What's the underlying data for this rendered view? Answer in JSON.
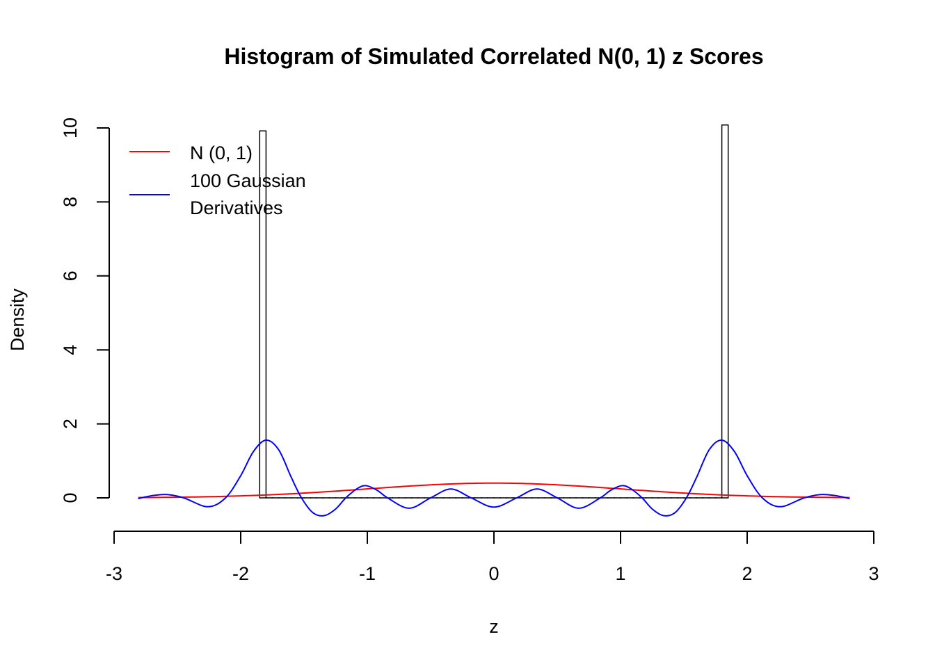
{
  "chart_data": {
    "type": "histogram",
    "title": "Histogram of Simulated Correlated N(0, 1) z Scores",
    "xlabel": "z",
    "ylabel": "Density",
    "xlim": [
      -3,
      3
    ],
    "ylim": [
      0,
      10
    ],
    "xticks": [
      -3,
      -2,
      -1,
      0,
      1,
      2,
      3
    ],
    "yticks": [
      0,
      2,
      4,
      6,
      8,
      10
    ],
    "grid": false,
    "histogram": {
      "break_start": -1.85,
      "bin_width": 0.05,
      "densities": [
        9.92,
        0,
        0,
        0,
        0,
        0,
        0,
        0,
        0,
        0,
        0,
        0,
        0,
        0,
        0,
        0,
        0,
        0,
        0,
        0,
        0,
        0,
        0,
        0,
        0,
        0,
        0,
        0,
        0,
        0,
        0,
        0,
        0,
        0,
        0,
        0,
        0,
        0,
        0,
        0,
        0,
        0,
        0,
        0,
        0,
        0,
        0,
        0,
        0,
        0,
        0,
        0,
        0,
        0,
        0,
        0,
        0,
        0,
        0,
        0,
        0,
        0,
        0,
        0,
        0,
        0,
        0,
        0,
        0,
        0,
        0,
        0,
        0,
        10.08
      ],
      "color": "#000000"
    },
    "series": [
      {
        "name": "N (0, 1)",
        "color": "#ff0000",
        "kind": "normal_density",
        "mean": 0,
        "sd": 1,
        "x_range": [
          -2.81,
          2.81
        ]
      },
      {
        "name": "100 Gaussian Derivatives",
        "color": "#0000ff",
        "points": [
          [
            -2.81,
            -0.02
          ],
          [
            -2.7,
            0.06
          ],
          [
            -2.58,
            0.09
          ],
          [
            -2.45,
            0.0
          ],
          [
            -2.26,
            -0.24
          ],
          [
            -2.12,
            0
          ],
          [
            -2.0,
            0.6
          ],
          [
            -1.9,
            1.25
          ],
          [
            -1.8,
            1.56
          ],
          [
            -1.7,
            1.3
          ],
          [
            -1.6,
            0.55
          ],
          [
            -1.52,
            0
          ],
          [
            -1.43,
            -0.4
          ],
          [
            -1.34,
            -0.48
          ],
          [
            -1.25,
            -0.3
          ],
          [
            -1.17,
            0
          ],
          [
            -1.08,
            0.25
          ],
          [
            -1.01,
            0.33
          ],
          [
            -0.92,
            0.2
          ],
          [
            -0.84,
            0
          ],
          [
            -0.67,
            -0.28
          ],
          [
            -0.5,
            0
          ],
          [
            -0.34,
            0.24
          ],
          [
            -0.18,
            0
          ],
          [
            0,
            -0.25
          ],
          [
            0.18,
            0
          ],
          [
            0.34,
            0.24
          ],
          [
            0.5,
            0
          ],
          [
            0.67,
            -0.28
          ],
          [
            0.84,
            0
          ],
          [
            0.92,
            0.2
          ],
          [
            1.01,
            0.33
          ],
          [
            1.08,
            0.25
          ],
          [
            1.17,
            0
          ],
          [
            1.25,
            -0.3
          ],
          [
            1.34,
            -0.48
          ],
          [
            1.43,
            -0.4
          ],
          [
            1.52,
            0
          ],
          [
            1.6,
            0.55
          ],
          [
            1.7,
            1.3
          ],
          [
            1.8,
            1.56
          ],
          [
            1.9,
            1.25
          ],
          [
            2.0,
            0.6
          ],
          [
            2.12,
            0
          ],
          [
            2.26,
            -0.24
          ],
          [
            2.45,
            0.0
          ],
          [
            2.58,
            0.09
          ],
          [
            2.7,
            0.06
          ],
          [
            2.81,
            -0.02
          ]
        ]
      }
    ],
    "legend": {
      "placement": "top-left",
      "entries": [
        {
          "lines": [
            "N (0, 1)"
          ],
          "color": "#ff0000"
        },
        {
          "lines": [
            "100 Gaussian",
            "Derivatives"
          ],
          "color": "#0000ff"
        }
      ]
    }
  }
}
